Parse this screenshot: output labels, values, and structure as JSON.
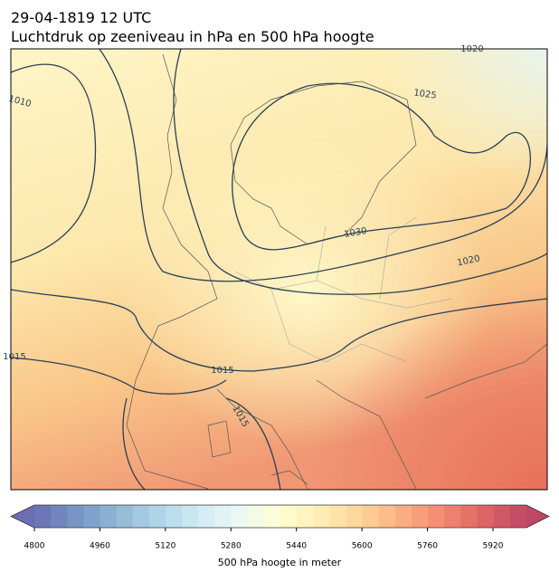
{
  "header": {
    "title": "29-04-1819 12 UTC",
    "subtitle": "Luchtdruk op zeeniveau in hPa en 500 hPa hoogte"
  },
  "contour_labels": [
    "1010",
    "1025",
    "1030",
    "1020",
    "1015",
    "1015",
    "1015",
    "1020"
  ],
  "colorbar": {
    "ticks": [
      4800,
      4960,
      5120,
      5280,
      5440,
      5600,
      5760,
      5920
    ],
    "label": "500 hPa hoogte in meter"
  }
}
